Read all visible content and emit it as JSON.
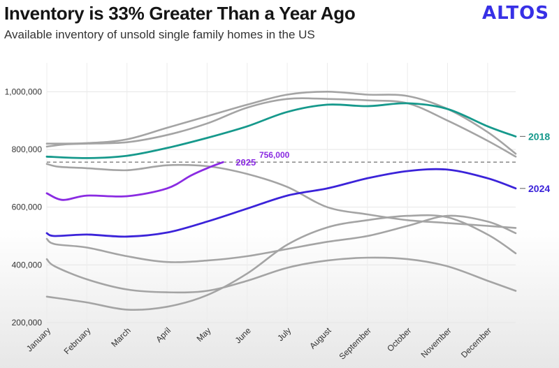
{
  "header": {
    "title": "Inventory is 33% Greater Than a Year Ago",
    "subtitle": "Available inventory of unsold single family homes in the US",
    "logo": "ALTOS"
  },
  "colors": {
    "logo": "#3730e6",
    "grey": "#a4a4a4",
    "s2018": "#16998c",
    "s2024": "#3b23d9",
    "s2025": "#8a2be2",
    "ref": "#7d7d7d"
  },
  "chart_data": {
    "type": "line",
    "title": "Inventory is 33% Greater Than a Year Ago",
    "subtitle": "Available inventory of unsold single family homes in the US",
    "x_labels": [
      "January",
      "February",
      "March",
      "April",
      "May",
      "June",
      "July",
      "August",
      "September",
      "October",
      "November",
      "December"
    ],
    "x_range": [
      0,
      11.7
    ],
    "y_range": [
      200000,
      1100000
    ],
    "y_ticks": [
      {
        "value": 200000,
        "label": "200,000"
      },
      {
        "value": 400000,
        "label": "400,000"
      },
      {
        "value": 600000,
        "label": "600,000"
      },
      {
        "value": 800000,
        "label": "800,000"
      },
      {
        "value": 1000000,
        "label": "1,000,000"
      }
    ],
    "reference_line": {
      "value": 756000,
      "label": "756,000"
    },
    "series": [
      {
        "name": "",
        "style": "grey",
        "points": [
          [
            0,
            820000
          ],
          [
            1,
            822000
          ],
          [
            2,
            835000
          ],
          [
            3,
            875000
          ],
          [
            4,
            915000
          ],
          [
            5,
            955000
          ],
          [
            6,
            990000
          ],
          [
            7,
            1000000
          ],
          [
            8,
            990000
          ],
          [
            9,
            985000
          ],
          [
            10,
            940000
          ],
          [
            11,
            860000
          ],
          [
            11.7,
            785000
          ]
        ]
      },
      {
        "name": "",
        "style": "grey",
        "points": [
          [
            0,
            810000
          ],
          [
            0.5,
            818000
          ],
          [
            1,
            820000
          ],
          [
            2,
            825000
          ],
          [
            3,
            850000
          ],
          [
            4,
            890000
          ],
          [
            5,
            945000
          ],
          [
            6,
            975000
          ],
          [
            7,
            975000
          ],
          [
            8,
            970000
          ],
          [
            9,
            960000
          ],
          [
            10,
            900000
          ],
          [
            11,
            830000
          ],
          [
            11.7,
            775000
          ]
        ]
      },
      {
        "name": "",
        "style": "grey",
        "points": [
          [
            0,
            750000
          ],
          [
            0.3,
            740000
          ],
          [
            1,
            735000
          ],
          [
            2,
            728000
          ],
          [
            3,
            745000
          ],
          [
            4,
            742000
          ],
          [
            5,
            715000
          ],
          [
            6,
            670000
          ],
          [
            7,
            600000
          ],
          [
            8,
            575000
          ],
          [
            9,
            555000
          ],
          [
            10,
            545000
          ],
          [
            11,
            535000
          ],
          [
            11.7,
            528000
          ]
        ]
      },
      {
        "name": "",
        "style": "grey",
        "points": [
          [
            0,
            490000
          ],
          [
            0.2,
            472000
          ],
          [
            1,
            460000
          ],
          [
            2,
            430000
          ],
          [
            3,
            410000
          ],
          [
            4,
            415000
          ],
          [
            5,
            430000
          ],
          [
            6,
            455000
          ],
          [
            7,
            480000
          ],
          [
            8,
            500000
          ],
          [
            9,
            535000
          ],
          [
            10,
            570000
          ],
          [
            11,
            550000
          ],
          [
            11.7,
            510000
          ]
        ]
      },
      {
        "name": "",
        "style": "grey",
        "points": [
          [
            0,
            420000
          ],
          [
            0.2,
            395000
          ],
          [
            1,
            350000
          ],
          [
            2,
            315000
          ],
          [
            3,
            305000
          ],
          [
            4,
            310000
          ],
          [
            5,
            345000
          ],
          [
            6,
            390000
          ],
          [
            7,
            415000
          ],
          [
            8,
            425000
          ],
          [
            9,
            420000
          ],
          [
            10,
            395000
          ],
          [
            11,
            345000
          ],
          [
            11.7,
            310000
          ]
        ]
      },
      {
        "name": "",
        "style": "grey",
        "points": [
          [
            0,
            290000
          ],
          [
            1,
            270000
          ],
          [
            2,
            245000
          ],
          [
            3,
            255000
          ],
          [
            4,
            295000
          ],
          [
            5,
            370000
          ],
          [
            6,
            470000
          ],
          [
            7,
            530000
          ],
          [
            8,
            555000
          ],
          [
            9,
            570000
          ],
          [
            10,
            565000
          ],
          [
            11,
            505000
          ],
          [
            11.7,
            440000
          ]
        ]
      },
      {
        "name": "2018",
        "style": "s2018",
        "points": [
          [
            0,
            775000
          ],
          [
            1,
            770000
          ],
          [
            2,
            778000
          ],
          [
            3,
            805000
          ],
          [
            4,
            840000
          ],
          [
            5,
            880000
          ],
          [
            6,
            930000
          ],
          [
            7,
            955000
          ],
          [
            8,
            950000
          ],
          [
            9,
            960000
          ],
          [
            10,
            940000
          ],
          [
            11,
            880000
          ],
          [
            11.7,
            845000
          ]
        ]
      },
      {
        "name": "2024",
        "style": "s2024",
        "points": [
          [
            0,
            510000
          ],
          [
            0.2,
            500000
          ],
          [
            1,
            505000
          ],
          [
            2,
            498000
          ],
          [
            3,
            512000
          ],
          [
            4,
            550000
          ],
          [
            5,
            595000
          ],
          [
            6,
            640000
          ],
          [
            7,
            665000
          ],
          [
            8,
            700000
          ],
          [
            9,
            725000
          ],
          [
            10,
            730000
          ],
          [
            11,
            700000
          ],
          [
            11.7,
            665000
          ]
        ]
      },
      {
        "name": "2025",
        "style": "s2025",
        "points": [
          [
            0,
            648000
          ],
          [
            0.4,
            625000
          ],
          [
            1,
            640000
          ],
          [
            2,
            638000
          ],
          [
            3,
            665000
          ],
          [
            3.6,
            710000
          ],
          [
            4,
            735000
          ],
          [
            4.4,
            756000
          ]
        ]
      }
    ]
  }
}
